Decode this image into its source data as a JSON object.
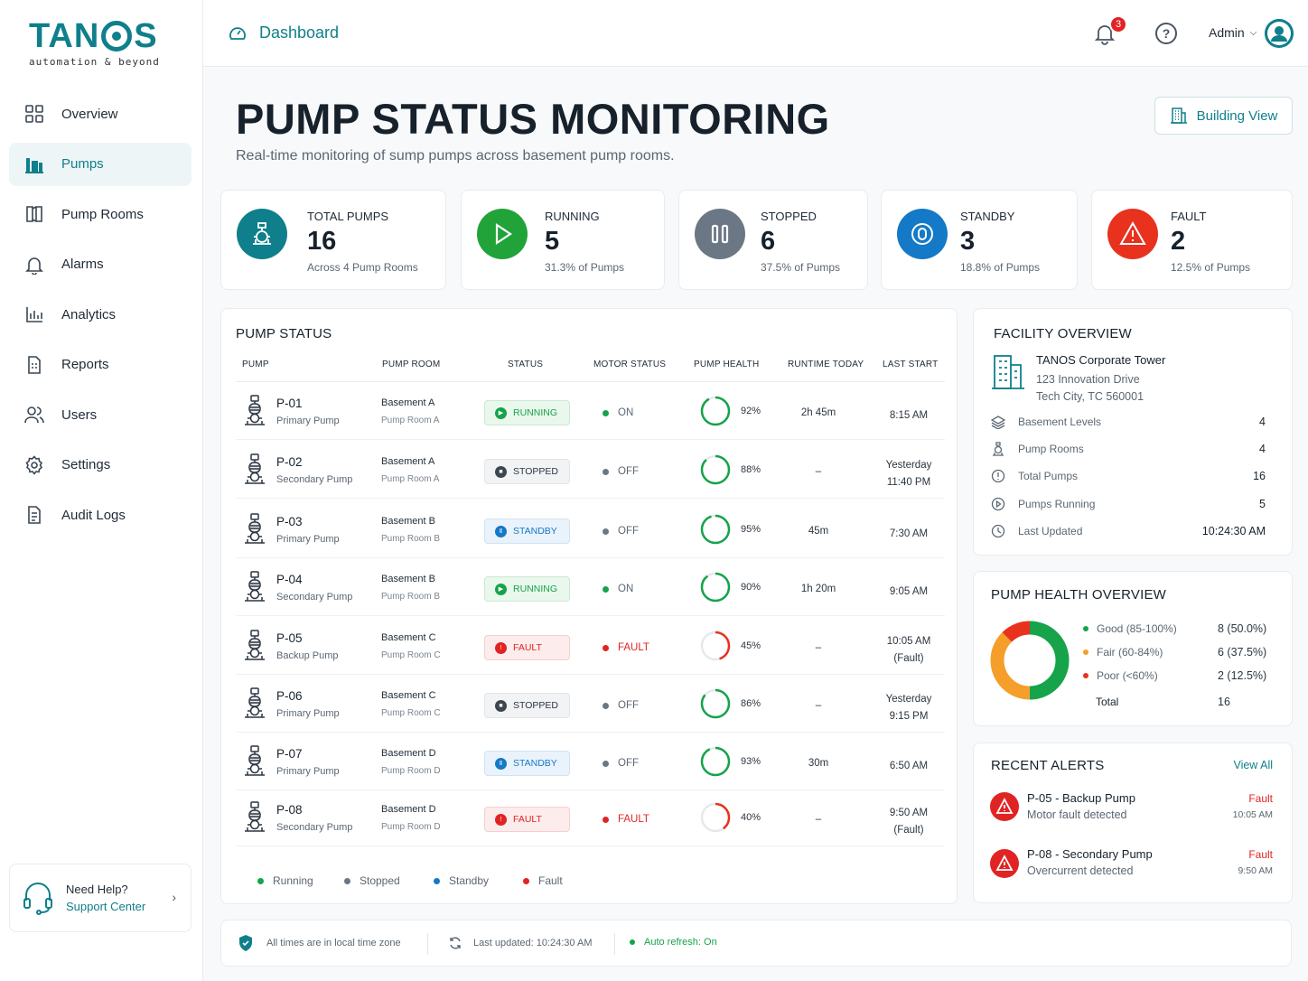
{
  "brand": {
    "name_left": "TAN",
    "name_right": "S",
    "tagline": "automation & beyond"
  },
  "nav": [
    {
      "label": "Overview",
      "icon": "grid-icon",
      "active": false
    },
    {
      "label": "Pumps",
      "icon": "pump-icon",
      "active": true
    },
    {
      "label": "Pump Rooms",
      "icon": "rooms-icon",
      "active": false
    },
    {
      "label": "Alarms",
      "icon": "bell-icon",
      "active": false
    },
    {
      "label": "Analytics",
      "icon": "bar-chart-icon",
      "active": false
    },
    {
      "label": "Reports",
      "icon": "report-icon",
      "active": false
    },
    {
      "label": "Users",
      "icon": "users-icon",
      "active": false
    },
    {
      "label": "Settings",
      "icon": "gear-icon",
      "active": false
    },
    {
      "label": "Audit Logs",
      "icon": "audit-icon",
      "active": false
    }
  ],
  "help": {
    "title": "Need Help?",
    "link": "Support Center"
  },
  "topbar": {
    "breadcrumb": "Dashboard",
    "notifications": "3",
    "user": "Admin"
  },
  "page": {
    "title": "PUMP STATUS MONITORING",
    "subtitle": "Real-time monitoring of sump pumps across basement pump rooms.",
    "building_view": "Building View"
  },
  "kpis": [
    {
      "label": "TOTAL PUMPS",
      "value": "16",
      "sub": "Across 4 Pump Rooms",
      "color": "#0f7f8c"
    },
    {
      "label": "RUNNING",
      "value": "5",
      "sub": "31.3% of Pumps",
      "color": "#22a33a"
    },
    {
      "label": "STOPPED",
      "value": "6",
      "sub": "37.5% of Pumps",
      "color": "#6b7785"
    },
    {
      "label": "STANDBY",
      "value": "3",
      "sub": "18.8% of Pumps",
      "color": "#1479c6"
    },
    {
      "label": "FAULT",
      "value": "2",
      "sub": "12.5% of Pumps",
      "color": "#e8321e"
    }
  ],
  "pump_table": {
    "title": "PUMP STATUS",
    "headers": [
      "PUMP",
      "PUMP ROOM",
      "STATUS",
      "MOTOR STATUS",
      "PUMP HEALTH",
      "RUNTIME TODAY",
      "LAST START"
    ],
    "rows": [
      {
        "id": "P-01",
        "type": "Primary Pump",
        "basement": "Basement A",
        "room": "Pump Room A",
        "status": "RUNNING",
        "status_key": "running",
        "motor": "ON",
        "health": 92,
        "health_label": "92%",
        "runtime": "2h 45m",
        "last1": "8:15 AM",
        "last2": ""
      },
      {
        "id": "P-02",
        "type": "Secondary Pump",
        "basement": "Basement A",
        "room": "Pump Room A",
        "status": "STOPPED",
        "status_key": "stopped",
        "motor": "OFF",
        "health": 88,
        "health_label": "88%",
        "runtime": "–",
        "last1": "Yesterday",
        "last2": "11:40 PM"
      },
      {
        "id": "P-03",
        "type": "Primary Pump",
        "basement": "Basement B",
        "room": "Pump Room B",
        "status": "STANDBY",
        "status_key": "standby",
        "motor": "OFF",
        "health": 95,
        "health_label": "95%",
        "runtime": "45m",
        "last1": "7:30 AM",
        "last2": ""
      },
      {
        "id": "P-04",
        "type": "Secondary Pump",
        "basement": "Basement B",
        "room": "Pump Room B",
        "status": "RUNNING",
        "status_key": "running",
        "motor": "ON",
        "health": 90,
        "health_label": "90%",
        "runtime": "1h 20m",
        "last1": "9:05 AM",
        "last2": ""
      },
      {
        "id": "P-05",
        "type": "Backup Pump",
        "basement": "Basement C",
        "room": "Pump Room C",
        "status": "FAULT",
        "status_key": "fault",
        "motor": "FAULT",
        "health": 45,
        "health_label": "45%",
        "runtime": "–",
        "last1": "10:05 AM",
        "last2": "(Fault)"
      },
      {
        "id": "P-06",
        "type": "Primary Pump",
        "basement": "Basement C",
        "room": "Pump Room C",
        "status": "STOPPED",
        "status_key": "stopped",
        "motor": "OFF",
        "health": 86,
        "health_label": "86%",
        "runtime": "–",
        "last1": "Yesterday",
        "last2": "9:15 PM"
      },
      {
        "id": "P-07",
        "type": "Primary Pump",
        "basement": "Basement D",
        "room": "Pump Room D",
        "status": "STANDBY",
        "status_key": "standby",
        "motor": "OFF",
        "health": 93,
        "health_label": "93%",
        "runtime": "30m",
        "last1": "6:50 AM",
        "last2": ""
      },
      {
        "id": "P-08",
        "type": "Secondary Pump",
        "basement": "Basement D",
        "room": "Pump Room D",
        "status": "FAULT",
        "status_key": "fault",
        "motor": "FAULT",
        "health": 40,
        "health_label": "40%",
        "runtime": "–",
        "last1": "9:50 AM",
        "last2": "(Fault)"
      }
    ],
    "legend": [
      {
        "label": "Running",
        "color": "#16a34a"
      },
      {
        "label": "Stopped",
        "color": "#6b7785"
      },
      {
        "label": "Standby",
        "color": "#1479c6"
      },
      {
        "label": "Fault",
        "color": "#e02424"
      }
    ]
  },
  "facility": {
    "title": "FACILITY OVERVIEW",
    "name": "TANOS Corporate Tower",
    "address1": "123 Innovation Drive",
    "address2": "Tech City, TC 560001",
    "rows": [
      {
        "label": "Basement Levels",
        "value": "4",
        "icon": "layers-icon"
      },
      {
        "label": "Pump Rooms",
        "value": "4",
        "icon": "pump-icon"
      },
      {
        "label": "Total Pumps",
        "value": "16",
        "icon": "info-icon"
      },
      {
        "label": "Pumps Running",
        "value": "5",
        "icon": "play-icon"
      },
      {
        "label": "Last Updated",
        "value": "10:24:30 AM",
        "icon": "clock-icon"
      }
    ]
  },
  "health_overview": {
    "title": "PUMP HEALTH OVERVIEW",
    "items": [
      {
        "label": "Good (85-100%)",
        "value": "8 (50.0%)",
        "count": 8,
        "color": "#16a34a"
      },
      {
        "label": "Fair (60-84%)",
        "value": "6 (37.5%)",
        "count": 6,
        "color": "#f59e2a"
      },
      {
        "label": "Poor (<60%)",
        "value": "2 (12.5%)",
        "count": 2,
        "color": "#e8321e"
      }
    ],
    "total_label": "Total",
    "total_value": "16"
  },
  "alerts": {
    "title": "RECENT ALERTS",
    "view_all": "View All",
    "items": [
      {
        "title": "P-05 - Backup Pump",
        "desc": "Motor fault detected",
        "status": "Fault",
        "time": "10:05 AM"
      },
      {
        "title": "P-08 - Secondary Pump",
        "desc": "Overcurrent detected",
        "status": "Fault",
        "time": "9:50 AM"
      }
    ]
  },
  "footer": {
    "timezone": "All times are in local time zone",
    "last_updated": "Last updated:  10:24:30 AM",
    "auto_refresh": "Auto refresh: On"
  }
}
